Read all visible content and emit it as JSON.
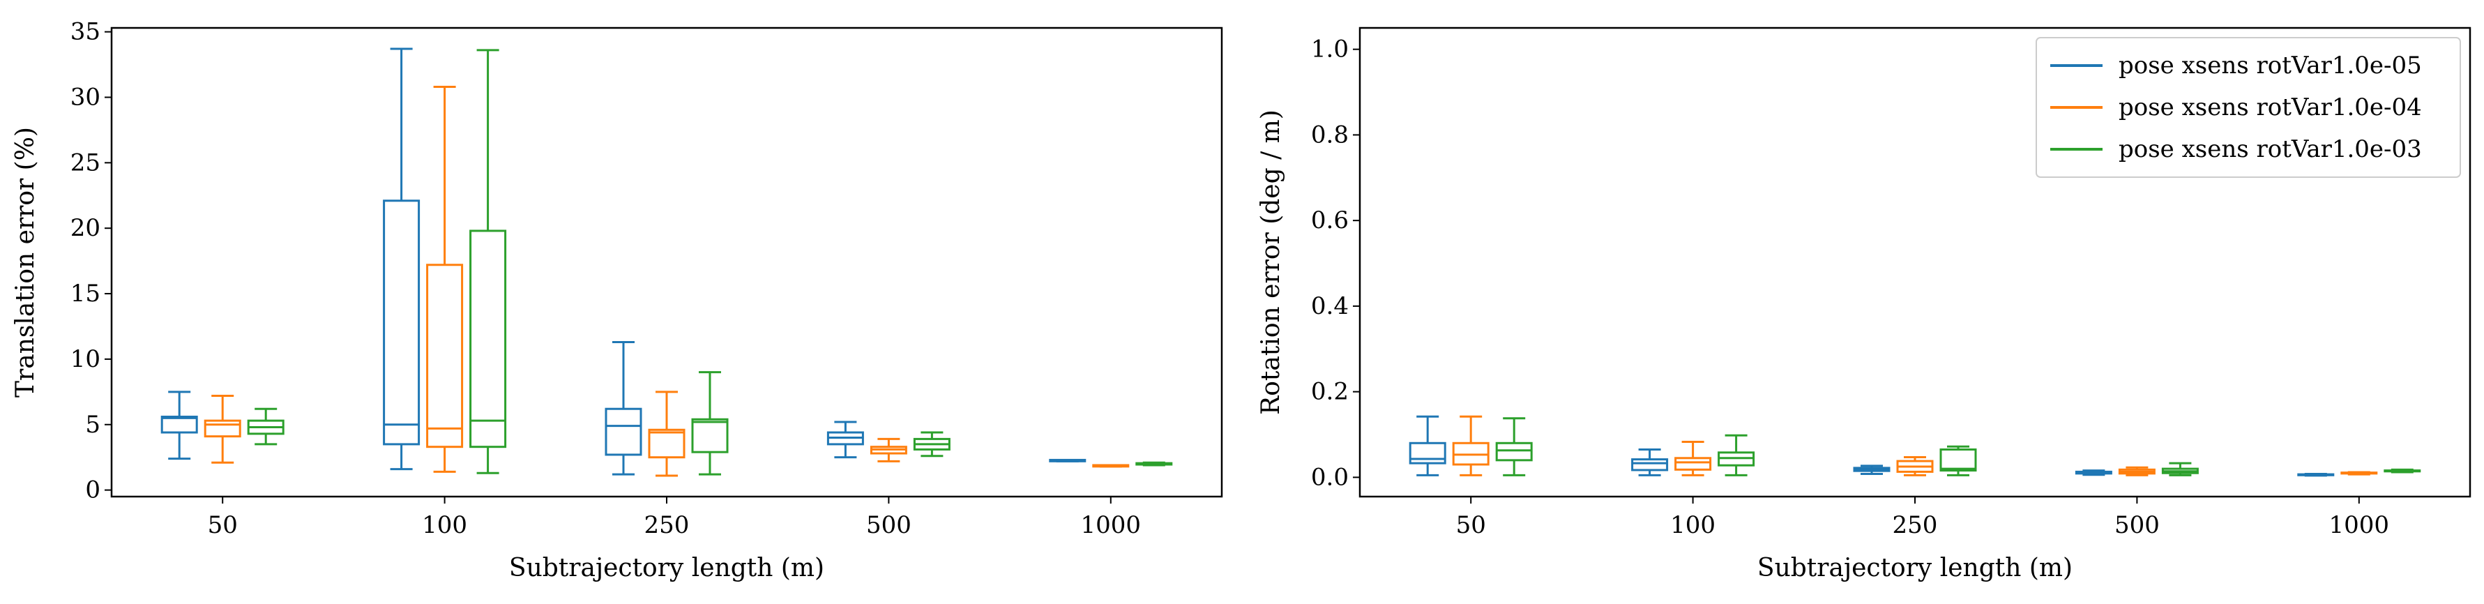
{
  "colors": {
    "s1": "#1f77b4",
    "s2": "#ff7f0e",
    "s3": "#2ca02c"
  },
  "legend": {
    "position": "top-right",
    "entries": [
      "pose xsens rotVar1.0e-05",
      "pose xsens rotVar1.0e-04",
      "pose xsens rotVar1.0e-03"
    ]
  },
  "chart_data": [
    {
      "type": "box",
      "title": "",
      "xlabel": "Subtrajectory length (m)",
      "ylabel": "Translation error (%)",
      "categories": [
        "50",
        "100",
        "250",
        "500",
        "1000"
      ],
      "ylim": [
        -0.5,
        35.3
      ],
      "yticks": [
        0,
        5,
        10,
        15,
        20,
        25,
        30,
        35
      ],
      "series": [
        {
          "name": "pose xsens rotVar1.0e-05",
          "color": "#1f77b4",
          "boxes": [
            {
              "whislo": 2.4,
              "q1": 4.4,
              "med": 5.5,
              "q3": 5.6,
              "whishi": 7.5
            },
            {
              "whislo": 1.6,
              "q1": 3.5,
              "med": 5.0,
              "q3": 22.1,
              "whishi": 33.7
            },
            {
              "whislo": 1.2,
              "q1": 2.7,
              "med": 4.9,
              "q3": 6.2,
              "whishi": 11.3
            },
            {
              "whislo": 2.5,
              "q1": 3.5,
              "med": 4.0,
              "q3": 4.4,
              "whishi": 5.2
            },
            {
              "whislo": 2.2,
              "q1": 2.2,
              "med": 2.25,
              "q3": 2.3,
              "whishi": 2.3
            }
          ]
        },
        {
          "name": "pose xsens rotVar1.0e-04",
          "color": "#ff7f0e",
          "boxes": [
            {
              "whislo": 2.1,
              "q1": 4.1,
              "med": 5.0,
              "q3": 5.3,
              "whishi": 7.2
            },
            {
              "whislo": 1.4,
              "q1": 3.3,
              "med": 4.7,
              "q3": 17.2,
              "whishi": 30.8
            },
            {
              "whislo": 1.1,
              "q1": 2.5,
              "med": 4.4,
              "q3": 4.6,
              "whishi": 7.5
            },
            {
              "whislo": 2.2,
              "q1": 2.8,
              "med": 3.1,
              "q3": 3.3,
              "whishi": 3.9
            },
            {
              "whislo": 1.8,
              "q1": 1.8,
              "med": 1.85,
              "q3": 1.9,
              "whishi": 1.9
            }
          ]
        },
        {
          "name": "pose xsens rotVar1.0e-03",
          "color": "#2ca02c",
          "boxes": [
            {
              "whislo": 3.5,
              "q1": 4.3,
              "med": 4.8,
              "q3": 5.3,
              "whishi": 6.2
            },
            {
              "whislo": 1.3,
              "q1": 3.3,
              "med": 5.3,
              "q3": 19.8,
              "whishi": 33.6
            },
            {
              "whislo": 1.2,
              "q1": 2.9,
              "med": 5.2,
              "q3": 5.4,
              "whishi": 9.0
            },
            {
              "whislo": 2.6,
              "q1": 3.1,
              "med": 3.5,
              "q3": 3.9,
              "whishi": 4.4
            },
            {
              "whislo": 1.9,
              "q1": 1.95,
              "med": 2.0,
              "q3": 2.05,
              "whishi": 2.1
            }
          ]
        }
      ]
    },
    {
      "type": "box",
      "title": "",
      "xlabel": "Subtrajectory length (m)",
      "ylabel": "Rotation error (deg / m)",
      "categories": [
        "50",
        "100",
        "250",
        "500",
        "1000"
      ],
      "ylim": [
        -0.045,
        1.05
      ],
      "yticks": [
        0.0,
        0.2,
        0.4,
        0.6,
        0.8,
        1.0
      ],
      "ytick_labels": [
        "0.0",
        "0.2",
        "0.4",
        "0.6",
        "0.8",
        "1.0"
      ],
      "series": [
        {
          "name": "pose xsens rotVar1.0e-05",
          "color": "#1f77b4",
          "boxes": [
            {
              "whislo": 0.005,
              "q1": 0.033,
              "med": 0.043,
              "q3": 0.08,
              "whishi": 0.142
            },
            {
              "whislo": 0.005,
              "q1": 0.017,
              "med": 0.033,
              "q3": 0.042,
              "whishi": 0.065
            },
            {
              "whislo": 0.008,
              "q1": 0.015,
              "med": 0.018,
              "q3": 0.022,
              "whishi": 0.027
            },
            {
              "whislo": 0.006,
              "q1": 0.009,
              "med": 0.011,
              "q3": 0.013,
              "whishi": 0.016
            },
            {
              "whislo": 0.004,
              "q1": 0.005,
              "med": 0.006,
              "q3": 0.007,
              "whishi": 0.008
            }
          ]
        },
        {
          "name": "pose xsens rotVar1.0e-04",
          "color": "#ff7f0e",
          "boxes": [
            {
              "whislo": 0.005,
              "q1": 0.03,
              "med": 0.053,
              "q3": 0.08,
              "whishi": 0.142
            },
            {
              "whislo": 0.005,
              "q1": 0.018,
              "med": 0.035,
              "q3": 0.045,
              "whishi": 0.083
            },
            {
              "whislo": 0.005,
              "q1": 0.013,
              "med": 0.025,
              "q3": 0.038,
              "whishi": 0.047
            },
            {
              "whislo": 0.005,
              "q1": 0.009,
              "med": 0.013,
              "q3": 0.018,
              "whishi": 0.023
            },
            {
              "whislo": 0.007,
              "q1": 0.009,
              "med": 0.01,
              "q3": 0.011,
              "whishi": 0.012
            }
          ]
        },
        {
          "name": "pose xsens rotVar1.0e-03",
          "color": "#2ca02c",
          "boxes": [
            {
              "whislo": 0.005,
              "q1": 0.04,
              "med": 0.063,
              "q3": 0.08,
              "whishi": 0.138
            },
            {
              "whislo": 0.005,
              "q1": 0.028,
              "med": 0.045,
              "q3": 0.058,
              "whishi": 0.098
            },
            {
              "whislo": 0.005,
              "q1": 0.016,
              "med": 0.02,
              "q3": 0.065,
              "whishi": 0.072
            },
            {
              "whislo": 0.005,
              "q1": 0.01,
              "med": 0.014,
              "q3": 0.02,
              "whishi": 0.033
            },
            {
              "whislo": 0.012,
              "q1": 0.014,
              "med": 0.015,
              "q3": 0.016,
              "whishi": 0.018
            }
          ]
        }
      ]
    }
  ]
}
